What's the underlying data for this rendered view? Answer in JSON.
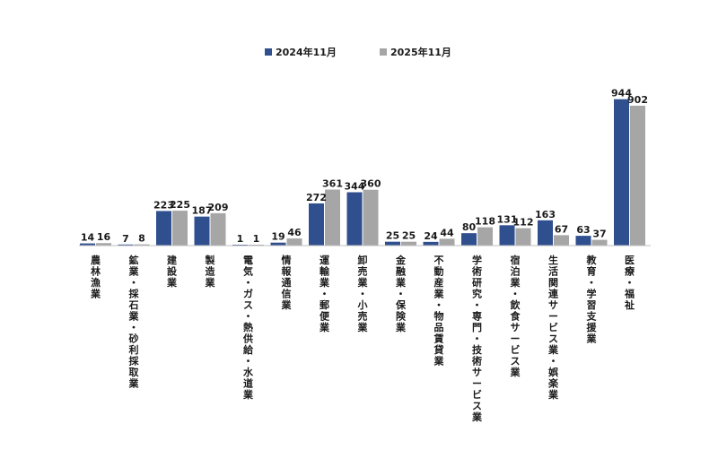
{
  "chart_data": {
    "type": "bar",
    "categories": [
      "農林漁業",
      "鉱業・採石業・砂利採取業",
      "建設業",
      "製造業",
      "電気・ガス・熱供給・水道業",
      "情報通信業",
      "運輸業・郵便業",
      "卸売業・小売業",
      "金融業・保険業",
      "不動産業・物品賃貸業",
      "学術研究・専門・技術サービス業",
      "宿泊業・飲食サービス業",
      "生活関連サービス業・娯楽業",
      "教育・学習支援業",
      "医療・福祉"
    ],
    "series": [
      {
        "name": "2024年11月",
        "color": "#2f4f8f",
        "values": [
          14,
          7,
          223,
          187,
          1,
          19,
          272,
          344,
          25,
          24,
          80,
          131,
          163,
          63,
          944
        ]
      },
      {
        "name": "2025年11月",
        "color": "#a6a6a6",
        "values": [
          16,
          8,
          225,
          209,
          1,
          46,
          361,
          360,
          25,
          44,
          118,
          112,
          67,
          37,
          902
        ]
      }
    ],
    "ylim": [
      0,
      1000
    ],
    "grid": false,
    "legend_position": "top-center",
    "data_labels": true
  }
}
